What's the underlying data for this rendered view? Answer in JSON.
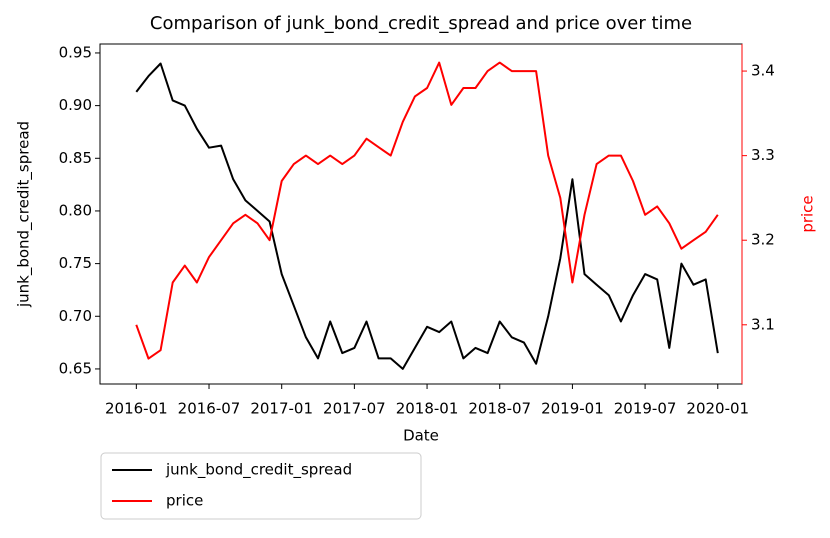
{
  "chart_data": {
    "type": "line",
    "title": "Comparison of junk_bond_credit_spread and price over time",
    "xlabel": "Date",
    "ylabel": "junk_bond_credit_spread",
    "y2label": "price",
    "x": [
      "2016-01",
      "2016-02",
      "2016-03",
      "2016-04",
      "2016-05",
      "2016-06",
      "2016-07",
      "2016-08",
      "2016-09",
      "2016-10",
      "2016-11",
      "2016-12",
      "2017-01",
      "2017-02",
      "2017-03",
      "2017-04",
      "2017-05",
      "2017-06",
      "2017-07",
      "2017-08",
      "2017-09",
      "2017-10",
      "2017-11",
      "2017-12",
      "2018-01",
      "2018-02",
      "2018-03",
      "2018-04",
      "2018-05",
      "2018-06",
      "2018-07",
      "2018-08",
      "2018-09",
      "2018-10",
      "2018-11",
      "2018-12",
      "2019-01",
      "2019-02",
      "2019-03",
      "2019-04",
      "2019-05",
      "2019-06",
      "2019-07",
      "2019-08",
      "2019-09",
      "2019-10",
      "2019-11",
      "2019-12",
      "2020-01"
    ],
    "series": [
      {
        "name": "junk_bond_credit_spread",
        "color": "#000000",
        "axis": "y",
        "values": [
          0.913,
          0.928,
          0.94,
          0.905,
          0.9,
          0.878,
          0.86,
          0.862,
          0.83,
          0.81,
          0.8,
          0.79,
          0.74,
          0.71,
          0.68,
          0.66,
          0.695,
          0.665,
          0.67,
          0.695,
          0.66,
          0.66,
          0.65,
          0.67,
          0.69,
          0.685,
          0.695,
          0.66,
          0.67,
          0.665,
          0.695,
          0.68,
          0.675,
          0.655,
          0.7,
          0.755,
          0.83,
          0.74,
          0.73,
          0.72,
          0.695,
          0.72,
          0.74,
          0.735,
          0.67,
          0.75,
          0.73,
          0.735,
          0.665
        ]
      },
      {
        "name": "price",
        "color": "#ff0000",
        "axis": "y2",
        "values": [
          3.1,
          3.06,
          3.07,
          3.15,
          3.17,
          3.15,
          3.18,
          3.2,
          3.22,
          3.23,
          3.22,
          3.2,
          3.27,
          3.29,
          3.3,
          3.29,
          3.3,
          3.29,
          3.3,
          3.32,
          3.31,
          3.3,
          3.34,
          3.37,
          3.38,
          3.41,
          3.36,
          3.38,
          3.38,
          3.4,
          3.41,
          3.4,
          3.4,
          3.4,
          3.3,
          3.25,
          3.15,
          3.23,
          3.29,
          3.3,
          3.3,
          3.27,
          3.23,
          3.24,
          3.22,
          3.19,
          3.2,
          3.21,
          3.23
        ]
      }
    ],
    "xlim": [
      "2015-10",
      "2020-03"
    ],
    "xticks": [
      "2016-01",
      "2016-07",
      "2017-01",
      "2017-07",
      "2018-01",
      "2018-07",
      "2019-01",
      "2019-07",
      "2020-01"
    ],
    "ylim": [
      0.6357,
      0.9585
    ],
    "yticks": [
      0.65,
      {
        "value": 0.7,
        "label": "0.70"
      },
      0.75,
      {
        "value": 0.8,
        "label": "0.80"
      },
      0.85,
      {
        "value": 0.9,
        "label": "0.90"
      },
      0.95
    ],
    "y2lim": [
      3.03,
      3.432
    ],
    "y2ticks": [
      3.1,
      3.2,
      3.3,
      3.4
    ],
    "y2color": "#ff0000",
    "grid": false,
    "legend": "below left"
  }
}
